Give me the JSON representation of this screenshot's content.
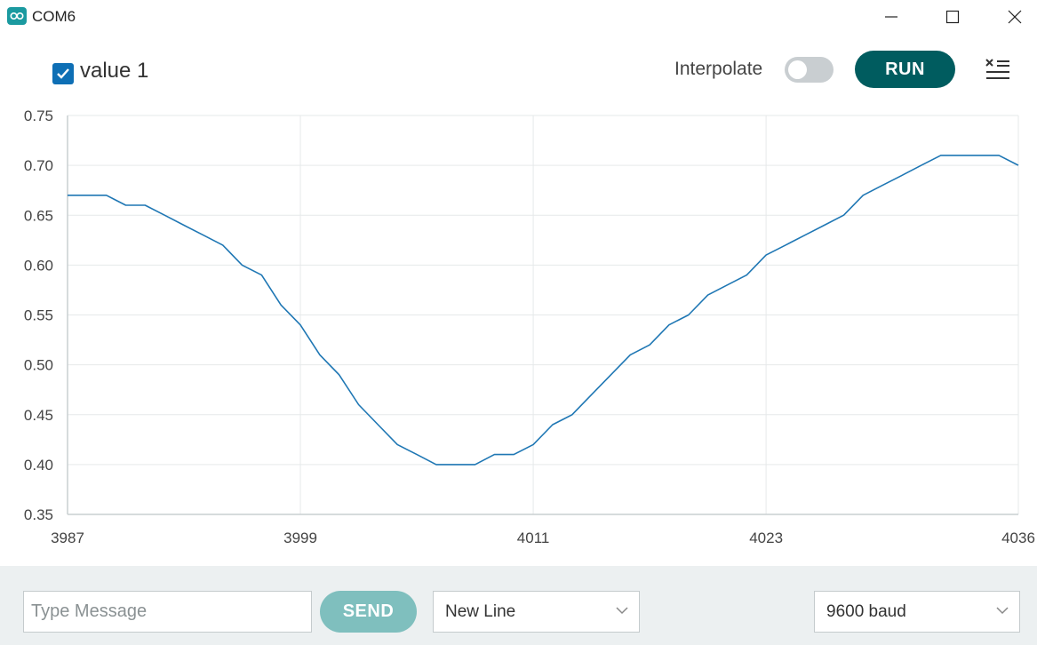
{
  "window": {
    "title": "COM6",
    "icons": [
      "arduino-icon",
      "minimize-icon",
      "maximize-icon",
      "close-icon"
    ]
  },
  "toolbar": {
    "series_checkbox": {
      "label": "value 1",
      "checked": true
    },
    "interpolate_label": "Interpolate",
    "interpolate_on": false,
    "run_label": "RUN",
    "clear_icon": "clear-list-icon"
  },
  "chart_data": {
    "type": "line",
    "series": [
      {
        "name": "value 1",
        "color": "#1f77b4",
        "x": [
          3987,
          3988,
          3989,
          3990,
          3991,
          3992,
          3993,
          3994,
          3995,
          3996,
          3997,
          3998,
          3999,
          4000,
          4001,
          4002,
          4003,
          4004,
          4005,
          4006,
          4007,
          4008,
          4009,
          4010,
          4011,
          4012,
          4013,
          4014,
          4015,
          4016,
          4017,
          4018,
          4019,
          4020,
          4021,
          4022,
          4023,
          4024,
          4025,
          4026,
          4027,
          4028,
          4029,
          4030,
          4031,
          4032,
          4033,
          4034,
          4035,
          4036
        ],
        "values": [
          0.67,
          0.67,
          0.67,
          0.66,
          0.66,
          0.65,
          0.64,
          0.63,
          0.62,
          0.6,
          0.59,
          0.56,
          0.54,
          0.51,
          0.49,
          0.46,
          0.44,
          0.42,
          0.41,
          0.4,
          0.4,
          0.4,
          0.41,
          0.41,
          0.42,
          0.44,
          0.45,
          0.47,
          0.49,
          0.51,
          0.52,
          0.54,
          0.55,
          0.57,
          0.58,
          0.59,
          0.61,
          0.62,
          0.63,
          0.64,
          0.65,
          0.67,
          0.68,
          0.69,
          0.7,
          0.71,
          0.71,
          0.71,
          0.71,
          0.7
        ]
      }
    ],
    "xlim": [
      3987,
      4036
    ],
    "ylim": [
      0.35,
      0.75
    ],
    "x_ticks": [
      "3987",
      "3999",
      "4011",
      "4023",
      "4036"
    ],
    "y_ticks": [
      "0.75",
      "0.70",
      "0.65",
      "0.60",
      "0.55",
      "0.50",
      "0.45",
      "0.40",
      "0.35"
    ],
    "grid": true
  },
  "footer": {
    "message_placeholder": "Type Message",
    "message_value": "",
    "send_label": "SEND",
    "line_ending": "New Line",
    "baud_rate": "9600 baud"
  }
}
